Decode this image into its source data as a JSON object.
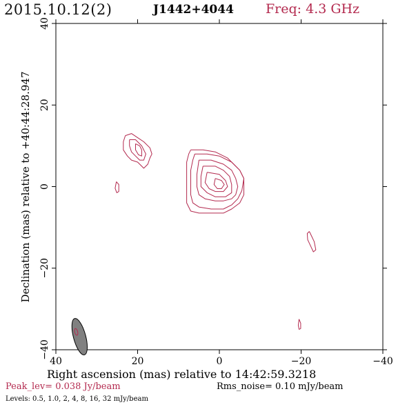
{
  "header": {
    "date": "2015.10.12(2)",
    "source": "J1442+4044",
    "freq": "Freq: 4.3 GHz"
  },
  "colors": {
    "contour": "#b3294e",
    "accent": "#b3294e",
    "beam_fill": "#808080",
    "axes": "#000000"
  },
  "chart_data": {
    "type": "contour",
    "xlabel": "Right ascension (mas) relative to 14:42:59.3218",
    "ylabel": "Declination (mas) relative to +40:44:28.947",
    "xlim": [
      40,
      -40
    ],
    "ylim": [
      -40,
      40
    ],
    "xticks": [
      40,
      20,
      0,
      -20,
      -40
    ],
    "yticks": [
      -40,
      -20,
      0,
      20,
      40
    ],
    "xtick_labels": [
      "40",
      "20",
      "0",
      "−20",
      "−40"
    ],
    "ytick_labels": [
      "−40",
      "−20",
      "0",
      "20",
      "40"
    ],
    "peak": "Peak_lev=  0.038 Jy/beam",
    "rms": "Rms_noise= 0.10 mJy/beam",
    "levels_text": "Levels: 0.5, 1.0,    2,    4,    8,   16,   32 mJy/beam",
    "levels": [
      0.5,
      1.0,
      2,
      4,
      8,
      16,
      32
    ],
    "components": [
      {
        "name": "core",
        "polylines": [
          [
            [
              7,
              9
            ],
            [
              4,
              9
            ],
            [
              1,
              8.5
            ],
            [
              -2,
              7
            ],
            [
              -4,
              5
            ],
            [
              -5,
              4
            ],
            [
              -6,
              2
            ],
            [
              -6,
              0
            ],
            [
              -6,
              -2
            ],
            [
              -5,
              -4
            ],
            [
              -3,
              -5.5
            ],
            [
              -1,
              -6.5
            ],
            [
              2,
              -6.5
            ],
            [
              5,
              -6.5
            ],
            [
              7,
              -6
            ],
            [
              8,
              -4
            ],
            [
              8,
              -1
            ],
            [
              8,
              3
            ],
            [
              8,
              6
            ],
            [
              7.5,
              8
            ],
            [
              7,
              9
            ]
          ],
          [
            [
              6,
              8
            ],
            [
              3,
              8
            ],
            [
              0,
              7.5
            ],
            [
              -3,
              6
            ],
            [
              -5,
              4
            ],
            [
              -6,
              2
            ],
            [
              -5.5,
              -1
            ],
            [
              -4.5,
              -3
            ],
            [
              -3,
              -4.5
            ],
            [
              -1,
              -5.5
            ],
            [
              2,
              -5.5
            ],
            [
              5,
              -5
            ],
            [
              6.5,
              -4
            ],
            [
              7,
              -2
            ],
            [
              7,
              1
            ],
            [
              7,
              4
            ],
            [
              6.5,
              6.5
            ],
            [
              6,
              8
            ]
          ],
          [
            [
              5,
              6.5
            ],
            [
              2,
              6.5
            ],
            [
              -1,
              5.5
            ],
            [
              -3,
              4
            ],
            [
              -4,
              2
            ],
            [
              -4.5,
              0
            ],
            [
              -4,
              -2
            ],
            [
              -3,
              -3
            ],
            [
              -1,
              -3.5
            ],
            [
              1,
              -3.5
            ],
            [
              3.5,
              -3
            ],
            [
              5,
              -2
            ],
            [
              5.5,
              0
            ],
            [
              5.5,
              3
            ],
            [
              5,
              6.5
            ]
          ],
          [
            [
              4,
              5
            ],
            [
              1,
              5
            ],
            [
              -1,
              4
            ],
            [
              -2.5,
              2.5
            ],
            [
              -3,
              0.5
            ],
            [
              -3,
              -1.5
            ],
            [
              -1.5,
              -2.5
            ],
            [
              1,
              -2.5
            ],
            [
              3,
              -1.5
            ],
            [
              4.5,
              0
            ],
            [
              4.5,
              2.5
            ],
            [
              4,
              5
            ]
          ],
          [
            [
              3,
              3.5
            ],
            [
              0,
              3
            ],
            [
              -1.5,
              1.5
            ],
            [
              -2,
              0
            ],
            [
              -1,
              -1.2
            ],
            [
              1,
              -1.2
            ],
            [
              2.5,
              -0.5
            ],
            [
              3.5,
              1
            ],
            [
              3,
              3.5
            ]
          ],
          [
            [
              1,
              2
            ],
            [
              -0.5,
              1.5
            ],
            [
              -1.2,
              0.5
            ],
            [
              -0.5,
              -0.5
            ],
            [
              0.5,
              -0.5
            ],
            [
              1.3,
              0.5
            ],
            [
              1,
              2
            ]
          ]
        ]
      },
      {
        "name": "jet-knot",
        "polylines": [
          [
            [
              23,
              12.5
            ],
            [
              21.5,
              13
            ],
            [
              20,
              12
            ],
            [
              18.5,
              11
            ],
            [
              17,
              9.5
            ],
            [
              16.5,
              8
            ],
            [
              17,
              7
            ],
            [
              17.5,
              5.5
            ],
            [
              18.5,
              4.5
            ],
            [
              19,
              5
            ],
            [
              20,
              6
            ],
            [
              21.5,
              6.5
            ],
            [
              22.5,
              7.5
            ],
            [
              23.5,
              9
            ],
            [
              23.5,
              11
            ],
            [
              23,
              12.5
            ]
          ],
          [
            [
              22,
              11.5
            ],
            [
              20.5,
              11.5
            ],
            [
              19,
              10
            ],
            [
              18,
              8
            ],
            [
              18.5,
              6.5
            ],
            [
              19.5,
              6.5
            ],
            [
              20.5,
              7.5
            ],
            [
              21.5,
              8.5
            ],
            [
              22,
              10
            ],
            [
              22,
              11.5
            ]
          ],
          [
            [
              20.5,
              10.5
            ],
            [
              19.5,
              10
            ],
            [
              19,
              9
            ],
            [
              19,
              7.5
            ],
            [
              19.8,
              7.8
            ],
            [
              20.5,
              9
            ],
            [
              20.5,
              10.5
            ]
          ]
        ]
      },
      {
        "name": "spot-east",
        "polylines": [
          [
            [
              25.2,
              1.2
            ],
            [
              24.6,
              0.5
            ],
            [
              24.6,
              -1.2
            ],
            [
              25.1,
              -1.5
            ],
            [
              25.5,
              -0.4
            ],
            [
              25.2,
              1.2
            ]
          ]
        ]
      },
      {
        "name": "spot-sw",
        "polylines": [
          [
            [
              -22,
              -11
            ],
            [
              -22.5,
              -12
            ],
            [
              -23.2,
              -13.5
            ],
            [
              -23.6,
              -15.5
            ],
            [
              -23,
              -16
            ],
            [
              -22.3,
              -14.5
            ],
            [
              -21.6,
              -13
            ],
            [
              -21.5,
              -11.5
            ],
            [
              -22,
              -11
            ]
          ]
        ]
      },
      {
        "name": "spot-south",
        "polylines": [
          [
            [
              -19.5,
              -32.5
            ],
            [
              -19.9,
              -33.5
            ],
            [
              -19.9,
              -34.8
            ],
            [
              -19.5,
              -35
            ],
            [
              -19.3,
              -34
            ],
            [
              -19.5,
              -32.5
            ]
          ]
        ]
      }
    ],
    "beam": {
      "center": [
        34.2,
        -36.8
      ],
      "width_mas": 1.5,
      "height_mas": 4.6,
      "tilt_deg": 15
    }
  }
}
